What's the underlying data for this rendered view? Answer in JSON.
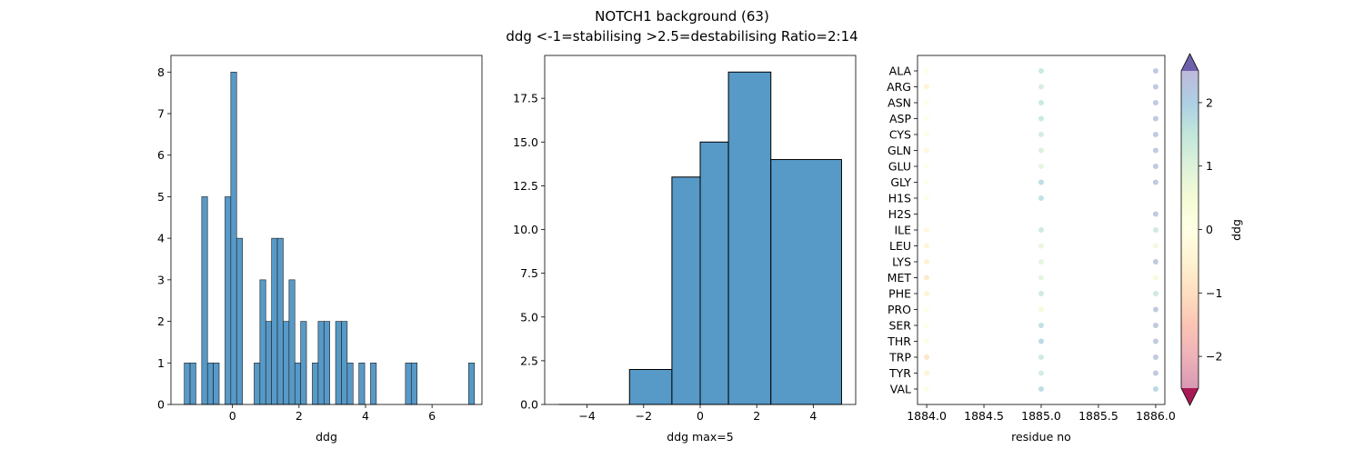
{
  "figure": {
    "title_line1": "NOTCH1 background (63)",
    "title_line2": "ddg <-1=stabilising >2.5=destabilising Ratio=2:14"
  },
  "chart_data": [
    {
      "type": "bar",
      "name": "ddg histogram (fine bins)",
      "xlabel": "ddg",
      "ylabel": "",
      "xlim": [
        -1.85,
        7.5
      ],
      "ylim": [
        0,
        8.4
      ],
      "xticks": [
        0,
        2,
        4,
        6
      ],
      "yticks": [
        0,
        1,
        2,
        3,
        4,
        5,
        6,
        7,
        8
      ],
      "bar_color": "#5799c7",
      "bin_width": 0.175,
      "bins": [
        {
          "x0": -1.45,
          "count": 1
        },
        {
          "x0": -1.275,
          "count": 1
        },
        {
          "x0": -0.925,
          "count": 5
        },
        {
          "x0": -0.75,
          "count": 1
        },
        {
          "x0": -0.575,
          "count": 1
        },
        {
          "x0": -0.225,
          "count": 5
        },
        {
          "x0": -0.05,
          "count": 8
        },
        {
          "x0": 0.125,
          "count": 4
        },
        {
          "x0": 0.65,
          "count": 1
        },
        {
          "x0": 0.825,
          "count": 3
        },
        {
          "x0": 1.0,
          "count": 2
        },
        {
          "x0": 1.175,
          "count": 4
        },
        {
          "x0": 1.35,
          "count": 4
        },
        {
          "x0": 1.525,
          "count": 2
        },
        {
          "x0": 1.7,
          "count": 3
        },
        {
          "x0": 1.875,
          "count": 1
        },
        {
          "x0": 2.05,
          "count": 2
        },
        {
          "x0": 2.4,
          "count": 1
        },
        {
          "x0": 2.575,
          "count": 2
        },
        {
          "x0": 2.75,
          "count": 2
        },
        {
          "x0": 3.1,
          "count": 2
        },
        {
          "x0": 3.275,
          "count": 2
        },
        {
          "x0": 3.45,
          "count": 1
        },
        {
          "x0": 3.8,
          "count": 1
        },
        {
          "x0": 4.15,
          "count": 1
        },
        {
          "x0": 5.2,
          "count": 1
        },
        {
          "x0": 5.375,
          "count": 1
        },
        {
          "x0": 7.1,
          "count": 1
        }
      ]
    },
    {
      "type": "bar",
      "name": "ddg histogram (clipped)",
      "xlabel": "ddg max=5",
      "ylabel": "",
      "xlim": [
        -5.5,
        5.5
      ],
      "ylim": [
        0,
        19.95
      ],
      "xticks": [
        -4,
        -2,
        0,
        2,
        4
      ],
      "yticks": [
        0.0,
        2.5,
        5.0,
        7.5,
        10.0,
        12.5,
        15.0,
        17.5
      ],
      "bar_color": "#5799c7",
      "bins": [
        {
          "x0": -5.0,
          "x1": -2.5,
          "count": 0
        },
        {
          "x0": -2.5,
          "x1": -1.0,
          "count": 2
        },
        {
          "x0": -1.0,
          "x1": 0.0,
          "count": 13
        },
        {
          "x0": 0.0,
          "x1": 1.0,
          "count": 15
        },
        {
          "x0": 1.0,
          "x1": 2.5,
          "count": 19
        },
        {
          "x0": 2.5,
          "x1": 5.0,
          "count": 14
        }
      ]
    },
    {
      "type": "scatter",
      "name": "ddg per mutation",
      "xlabel": "residue no",
      "ylabel": "",
      "xlim": [
        1883.92,
        1886.08
      ],
      "xticks": [
        1884.0,
        1884.5,
        1885.0,
        1885.5,
        1886.0
      ],
      "residues": [
        "ALA",
        "ARG",
        "ASN",
        "ASP",
        "CYS",
        "GLN",
        "GLU",
        "GLY",
        "H1S",
        "H2S",
        "ILE",
        "LEU",
        "LYS",
        "MET",
        "PHE",
        "PRO",
        "SER",
        "THR",
        "TRP",
        "TYR",
        "VAL"
      ],
      "colormap": "Spectral",
      "colorbar_label": "ddg",
      "colorbar_ticks": [
        -2,
        -1,
        0,
        1,
        2
      ],
      "vmin": -2.5,
      "vmax": 2.5,
      "points": [
        {
          "x": 1884,
          "aa": "ALA",
          "ddg": 0.1
        },
        {
          "x": 1884,
          "aa": "ARG",
          "ddg": -0.5
        },
        {
          "x": 1884,
          "aa": "ASN",
          "ddg": 0.15
        },
        {
          "x": 1884,
          "aa": "ASP",
          "ddg": 0.1
        },
        {
          "x": 1884,
          "aa": "CYS",
          "ddg": 0.2
        },
        {
          "x": 1884,
          "aa": "GLN",
          "ddg": -0.3
        },
        {
          "x": 1884,
          "aa": "GLU",
          "ddg": 0.05
        },
        {
          "x": 1884,
          "aa": "GLY",
          "ddg": 0.05
        },
        {
          "x": 1884,
          "aa": "H1S",
          "ddg": 0.1
        },
        {
          "x": 1884,
          "aa": "ILE",
          "ddg": -0.3
        },
        {
          "x": 1884,
          "aa": "LEU",
          "ddg": -0.4
        },
        {
          "x": 1884,
          "aa": "LYS",
          "ddg": -0.55
        },
        {
          "x": 1884,
          "aa": "MET",
          "ddg": -0.8
        },
        {
          "x": 1884,
          "aa": "PHE",
          "ddg": -0.5
        },
        {
          "x": 1884,
          "aa": "PRO",
          "ddg": 0.05
        },
        {
          "x": 1884,
          "aa": "SER",
          "ddg": 0.05
        },
        {
          "x": 1884,
          "aa": "THR",
          "ddg": 0.15
        },
        {
          "x": 1884,
          "aa": "TRP",
          "ddg": -0.9
        },
        {
          "x": 1884,
          "aa": "TYR",
          "ddg": -0.5
        },
        {
          "x": 1884,
          "aa": "VAL",
          "ddg": 0.1
        },
        {
          "x": 1885,
          "aa": "ALA",
          "ddg": 1.5
        },
        {
          "x": 1885,
          "aa": "ARG",
          "ddg": 1.2
        },
        {
          "x": 1885,
          "aa": "ASN",
          "ddg": 1.5
        },
        {
          "x": 1885,
          "aa": "ASP",
          "ddg": 1.5
        },
        {
          "x": 1885,
          "aa": "CYS",
          "ddg": 1.3
        },
        {
          "x": 1885,
          "aa": "GLN",
          "ddg": 1.1
        },
        {
          "x": 1885,
          "aa": "GLU",
          "ddg": 0.9
        },
        {
          "x": 1885,
          "aa": "GLY",
          "ddg": 1.8
        },
        {
          "x": 1885,
          "aa": "H1S",
          "ddg": 1.7
        },
        {
          "x": 1885,
          "aa": "ILE",
          "ddg": 1.4
        },
        {
          "x": 1885,
          "aa": "LEU",
          "ddg": 0.8
        },
        {
          "x": 1885,
          "aa": "LYS",
          "ddg": 0.9
        },
        {
          "x": 1885,
          "aa": "MET",
          "ddg": 0.9
        },
        {
          "x": 1885,
          "aa": "PHE",
          "ddg": 1.4
        },
        {
          "x": 1885,
          "aa": "PRO",
          "ddg": 0.5
        },
        {
          "x": 1885,
          "aa": "SER",
          "ddg": 1.7
        },
        {
          "x": 1885,
          "aa": "THR",
          "ddg": 1.9
        },
        {
          "x": 1885,
          "aa": "TRP",
          "ddg": 1.4
        },
        {
          "x": 1885,
          "aa": "TYR",
          "ddg": 1.3
        },
        {
          "x": 1885,
          "aa": "VAL",
          "ddg": 1.8
        },
        {
          "x": 1886,
          "aa": "ALA",
          "ddg": 2.3
        },
        {
          "x": 1886,
          "aa": "ARG",
          "ddg": 2.3
        },
        {
          "x": 1886,
          "aa": "ASN",
          "ddg": 2.3
        },
        {
          "x": 1886,
          "aa": "ASP",
          "ddg": 2.3
        },
        {
          "x": 1886,
          "aa": "CYS",
          "ddg": 2.3
        },
        {
          "x": 1886,
          "aa": "GLN",
          "ddg": 2.3
        },
        {
          "x": 1886,
          "aa": "GLU",
          "ddg": 2.3
        },
        {
          "x": 1886,
          "aa": "GLY",
          "ddg": 2.3
        },
        {
          "x": 1886,
          "aa": "H2S",
          "ddg": 2.3
        },
        {
          "x": 1886,
          "aa": "ILE",
          "ddg": 1.4
        },
        {
          "x": 1886,
          "aa": "LEU",
          "ddg": 0.6
        },
        {
          "x": 1886,
          "aa": "LYS",
          "ddg": 2.3
        },
        {
          "x": 1886,
          "aa": "MET",
          "ddg": 0.4
        },
        {
          "x": 1886,
          "aa": "PHE",
          "ddg": 1.4
        },
        {
          "x": 1886,
          "aa": "PRO",
          "ddg": 2.3
        },
        {
          "x": 1886,
          "aa": "SER",
          "ddg": 2.3
        },
        {
          "x": 1886,
          "aa": "THR",
          "ddg": 2.3
        },
        {
          "x": 1886,
          "aa": "TRP",
          "ddg": 2.3
        },
        {
          "x": 1886,
          "aa": "TYR",
          "ddg": 2.3
        },
        {
          "x": 1886,
          "aa": "VAL",
          "ddg": 1.9
        }
      ]
    }
  ]
}
